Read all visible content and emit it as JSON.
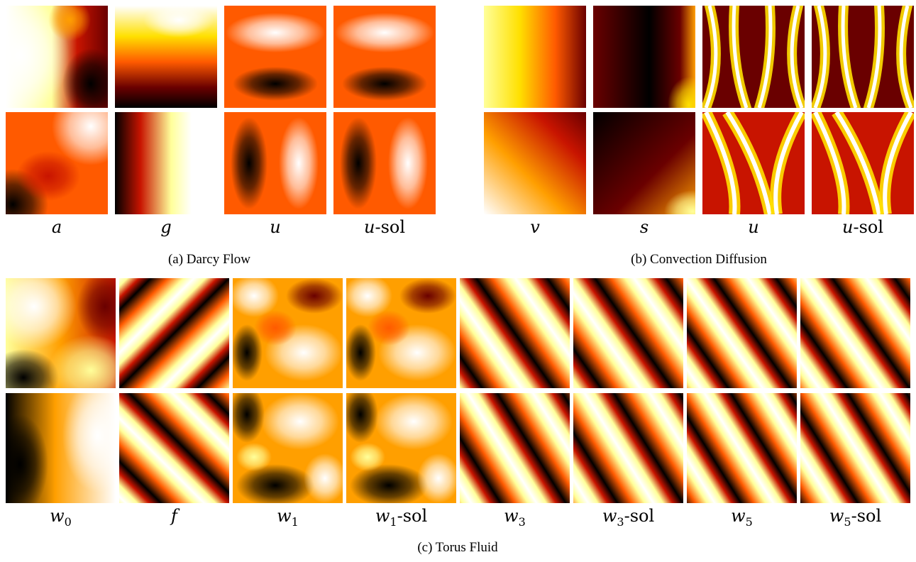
{
  "colormap": "hot",
  "colors": {
    "black": "#000000",
    "dark_red": "#8b0000",
    "red": "#e02000",
    "orange": "#ff8c00",
    "yellow": "#ffff00",
    "white": "#ffffff"
  },
  "panels": [
    {
      "id": "darcy",
      "caption": "(a) Darcy Flow",
      "labels": [
        {
          "base": "a",
          "sub": "",
          "suffix": ""
        },
        {
          "base": "g",
          "sub": "",
          "suffix": ""
        },
        {
          "base": "u",
          "sub": "",
          "suffix": ""
        },
        {
          "base": "u",
          "sub": "",
          "suffix": "-sol"
        }
      ]
    },
    {
      "id": "convection",
      "caption": "(b) Convection Diffusion",
      "labels": [
        {
          "base": "v",
          "sub": "",
          "suffix": ""
        },
        {
          "base": "s",
          "sub": "",
          "suffix": ""
        },
        {
          "base": "u",
          "sub": "",
          "suffix": ""
        },
        {
          "base": "u",
          "sub": "",
          "suffix": "-sol"
        }
      ]
    },
    {
      "id": "torus",
      "caption": "(c) Torus Fluid",
      "labels": [
        {
          "base": "w",
          "sub": "0",
          "suffix": ""
        },
        {
          "base": "f",
          "sub": "",
          "suffix": ""
        },
        {
          "base": "w",
          "sub": "1",
          "suffix": ""
        },
        {
          "base": "w",
          "sub": "1",
          "suffix": "-sol"
        },
        {
          "base": "w",
          "sub": "3",
          "suffix": ""
        },
        {
          "base": "w",
          "sub": "3",
          "suffix": "-sol"
        },
        {
          "base": "w",
          "sub": "5",
          "suffix": ""
        },
        {
          "base": "w",
          "sub": "5",
          "suffix": "-sol"
        }
      ]
    }
  ]
}
